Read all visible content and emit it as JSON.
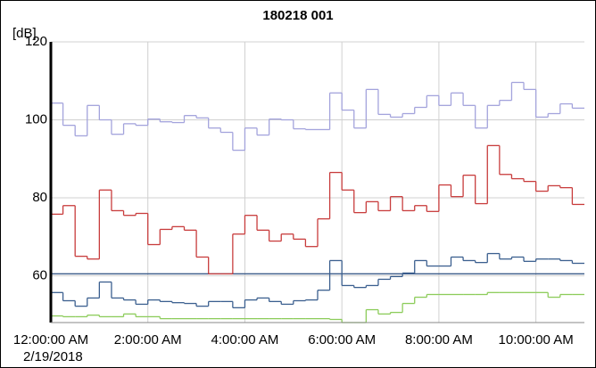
{
  "chart_data": {
    "type": "step-line",
    "title": "180218 001",
    "y_unit": "[dB]",
    "date": "2/19/2018",
    "x": [
      0,
      0.25,
      0.5,
      0.75,
      1,
      1.25,
      1.5,
      1.75,
      2,
      2.25,
      2.5,
      2.75,
      3,
      3.25,
      3.5,
      3.75,
      4,
      4.25,
      4.5,
      4.75,
      5,
      5.25,
      5.5,
      5.75,
      6,
      6.25,
      6.5,
      6.75,
      7,
      7.25,
      7.5,
      7.75,
      8,
      8.25,
      8.5,
      8.75,
      9,
      9.25,
      9.5,
      9.75,
      10,
      10.25,
      10.5,
      10.75
    ],
    "xlim": [
      0,
      11
    ],
    "xticks": [
      {
        "value": 0,
        "label": "12:00:00 AM"
      },
      {
        "value": 2,
        "label": "2:00:00 AM"
      },
      {
        "value": 4,
        "label": "4:00:00 AM"
      },
      {
        "value": 6,
        "label": "6:00:00 AM"
      },
      {
        "value": 8,
        "label": "8:00:00 AM"
      },
      {
        "value": 10,
        "label": "10:00:00 AM"
      }
    ],
    "ylim": [
      48,
      120
    ],
    "yticks": [
      60,
      80,
      100,
      120
    ],
    "grid": true,
    "reference_line": {
      "value": 60.5,
      "color": "#3a5a88"
    },
    "series": [
      {
        "color": "#a3a3dc",
        "values": [
          104.3,
          98.6,
          95.9,
          103.7,
          100,
          96.3,
          99,
          98.6,
          100.2,
          99.5,
          99.3,
          101.1,
          100.5,
          97.9,
          96.8,
          92.2,
          97.9,
          96.1,
          100.2,
          100,
          97.7,
          97.5,
          97.5,
          106.9,
          102.5,
          97.9,
          107.8,
          101.4,
          100.7,
          101.6,
          103.2,
          106.2,
          103.7,
          106.9,
          103.7,
          97.9,
          103.7,
          105,
          109.6,
          107.8,
          100.7,
          101.6,
          104.1,
          103
        ]
      },
      {
        "color": "#c83c3c",
        "values": [
          75.8,
          78,
          65,
          64.3,
          82,
          76.7,
          75.5,
          76,
          68,
          71.9,
          72.6,
          71.7,
          64.8,
          60.5,
          60.5,
          70.7,
          75.5,
          71.7,
          68.9,
          70.7,
          69.4,
          67.5,
          74.6,
          86.5,
          82,
          76.2,
          79,
          76.7,
          80.3,
          76.7,
          78,
          76.5,
          83.3,
          80.3,
          85.8,
          78.5,
          93.4,
          86,
          84.9,
          84.2,
          81.7,
          83.1,
          82.6,
          78.3
        ]
      },
      {
        "color": "#3b5f8f",
        "values": [
          55.7,
          53.6,
          52.2,
          54.3,
          58.4,
          54.3,
          53.8,
          52.7,
          53.8,
          53.4,
          53.1,
          52.9,
          52.2,
          53.4,
          53.4,
          51.8,
          53.8,
          54.3,
          53.4,
          52.7,
          53.6,
          53.8,
          56.3,
          63.9,
          57.5,
          57,
          57.5,
          59.1,
          59.8,
          60.7,
          63.9,
          62.5,
          62.5,
          64.8,
          63.9,
          63.4,
          65.7,
          64.3,
          64.8,
          63.7,
          64.3,
          64.3,
          63.9,
          63.2
        ]
      },
      {
        "color": "#8ccc5a",
        "values": [
          49.7,
          49.5,
          49.5,
          49.9,
          49.5,
          49.5,
          50.2,
          49.5,
          49.5,
          49,
          49,
          49,
          49,
          49,
          49,
          49,
          49,
          49,
          49,
          49,
          49,
          49,
          49,
          48.8,
          48,
          48,
          51.3,
          50.2,
          50.6,
          52.9,
          54.5,
          55.2,
          55.2,
          55.2,
          55.2,
          55.2,
          55.7,
          55.7,
          55.7,
          55.7,
          55.7,
          54.5,
          55.2,
          55.2
        ]
      }
    ]
  }
}
